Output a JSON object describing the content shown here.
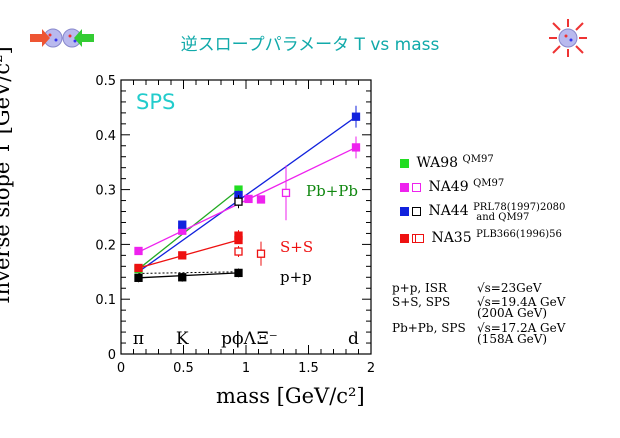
{
  "title": "逆スロープパラメータ T vs mass",
  "chart_data": {
    "type": "scatter",
    "tag": "SPS",
    "xlabel": "mass [GeV/c²]",
    "ylabel": "Inverse slope T [GeV/c²]",
    "xlim": [
      0,
      2
    ],
    "ylim": [
      0,
      0.5
    ],
    "xticks": [
      "0",
      "0.5",
      "1",
      "1.5",
      "2"
    ],
    "yticks": [
      "0",
      "0.1",
      "0.2",
      "0.3",
      "0.4",
      "0.5"
    ],
    "particles": [
      "π",
      "K",
      "pϕΛ",
      "Ξ⁻",
      "d"
    ],
    "system_labels": {
      "pbpb": "Pb+Pb",
      "ss": "S+S",
      "pp": "p+p"
    },
    "series": [
      {
        "name": "WA98",
        "ref": "QM97",
        "color": "#22dd22",
        "marker": "filled",
        "x": [
          0.14,
          0.94
        ],
        "y": [
          0.155,
          0.3
        ]
      },
      {
        "name": "NA49",
        "ref": "QM97",
        "color": "#ee22ee",
        "marker": "filled",
        "x": [
          0.14,
          0.49,
          0.94,
          1.02,
          1.12
        ],
        "y": [
          0.188,
          0.225,
          0.285,
          0.283,
          0.282
        ]
      },
      {
        "name": "NA49 open",
        "color": "#ee22ee",
        "marker": "open",
        "x": [
          1.32
        ],
        "y": [
          0.294
        ],
        "err": [
          0.05
        ]
      },
      {
        "name": "NA44",
        "ref": "PRL78(1997)2080 and QM97",
        "color": "#1122dd",
        "marker": "filled",
        "x": [
          0.49,
          0.94,
          1.88
        ],
        "y": [
          0.236,
          0.29,
          0.433
        ],
        "err": [
          0.005,
          0.008,
          0.02
        ]
      },
      {
        "name": "NA44 open",
        "color": "#000000",
        "marker": "open",
        "x": [
          0.94
        ],
        "y": [
          0.278
        ],
        "err": [
          0.012
        ]
      },
      {
        "name": "S+S NA44",
        "color": "#ee1111",
        "marker": "filled",
        "x": [
          0.14,
          0.49,
          0.94
        ],
        "y": [
          0.157,
          0.18,
          0.208
        ],
        "err": [
          0.004,
          0.005,
          0.006
        ]
      },
      {
        "name": "NA35",
        "ref": "PLB366(1996)56",
        "color": "#ee1111",
        "marker": "open",
        "x": [
          0.94,
          1.12
        ],
        "y": [
          0.187,
          0.183
        ],
        "err": [
          0.01,
          0.022
        ]
      },
      {
        "name": "p+p ISR",
        "color": "#000000",
        "marker": "filled",
        "x": [
          0.14,
          0.49,
          0.94
        ],
        "y": [
          0.139,
          0.14,
          0.148
        ],
        "err": [
          0.008,
          0.008,
          0.008
        ]
      }
    ],
    "fits": [
      {
        "color": "#22aa22",
        "x": [
          0.14,
          0.94
        ],
        "y": [
          0.155,
          0.3
        ]
      },
      {
        "color": "#1122dd",
        "x": [
          0.14,
          1.88
        ],
        "y": [
          0.15,
          0.433
        ]
      },
      {
        "color": "#ee22ee",
        "x": [
          0.14,
          1.88
        ],
        "y": [
          0.186,
          0.377
        ]
      },
      {
        "color": "#ee1111",
        "x": [
          0.14,
          0.94
        ],
        "y": [
          0.157,
          0.208
        ]
      },
      {
        "color": "#000000",
        "x": [
          0.14,
          0.94
        ],
        "y": [
          0.139,
          0.148
        ]
      }
    ],
    "ss_upper_point": {
      "x": 0.94,
      "y": 0.216,
      "err": 0.01,
      "color": "#ee1111"
    },
    "nonfit_points": [
      {
        "x": 1.88,
        "y": 0.377,
        "err": 0.02,
        "color": "#ee22ee"
      }
    ]
  },
  "legend": [
    {
      "name": "WA98",
      "ref": "QM97",
      "colors": [
        "#22dd22"
      ],
      "open": []
    },
    {
      "name": "NA49",
      "ref": "QM97",
      "colors": [
        "#ee22ee",
        "#ee22ee"
      ],
      "open": [
        1
      ]
    },
    {
      "name": "NA44",
      "ref": "PRL78(1997)2080\n and QM97",
      "colors": [
        "#1122dd",
        "#000000"
      ],
      "open": [
        1
      ]
    },
    {
      "name": "",
      "colors": [
        "#ee1111",
        "#ee1111"
      ],
      "open": [
        1
      ]
    },
    {
      "name": "NA35",
      "ref": "PLB366(1996)56",
      "colors": [
        "#ee1111"
      ],
      "open": [
        0
      ]
    }
  ],
  "notes": [
    {
      "system": "p+p, ISR",
      "energy": "√s=23GeV"
    },
    {
      "system": "S+S, SPS",
      "energy": "√s=19.4A GeV\n(200A GeV)"
    },
    {
      "system": "Pb+Pb, SPS",
      "energy": "√s=17.2A GeV\n(158A GeV)"
    }
  ]
}
